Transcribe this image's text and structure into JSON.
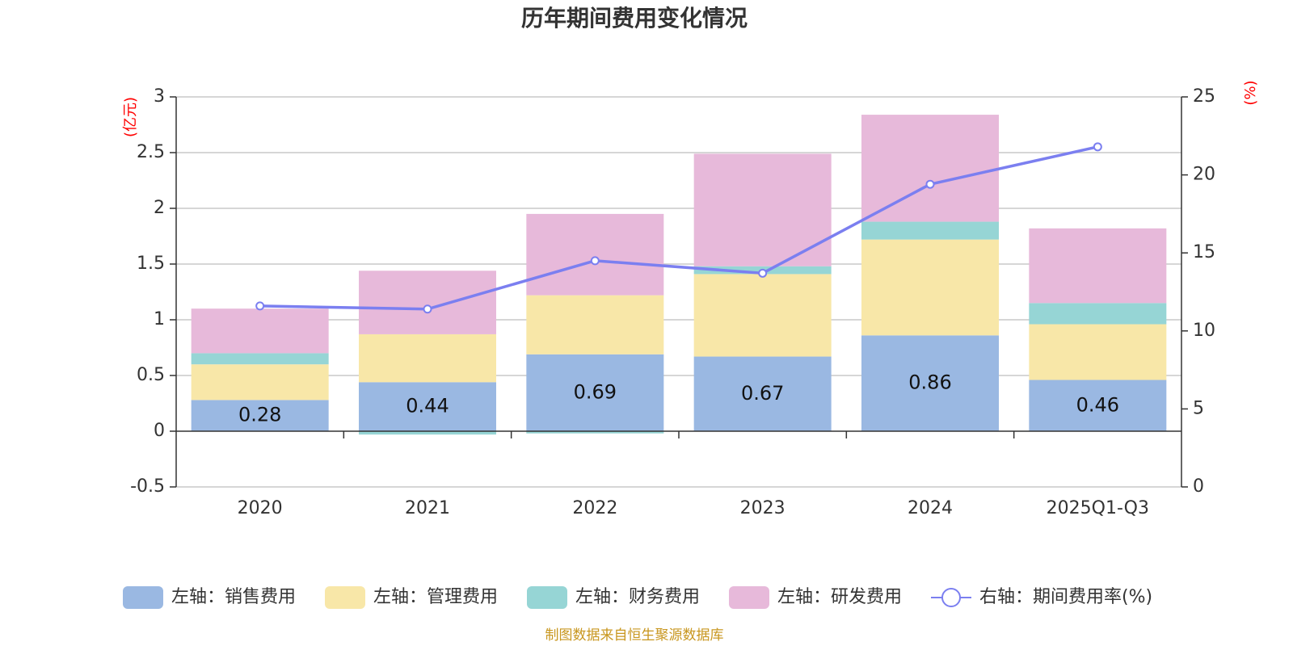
{
  "chart_data": {
    "type": "bar",
    "stacked": true,
    "title": "历年期间费用变化情况",
    "categories": [
      "2020",
      "2021",
      "2022",
      "2023",
      "2024",
      "2025Q1-Q3"
    ],
    "left_axis": {
      "unit_label": "(亿元)",
      "range": [
        -0.5,
        3
      ],
      "ticks": [
        -0.5,
        0,
        0.5,
        1,
        1.5,
        2,
        2.5,
        3
      ],
      "tick_labels": [
        "-0.5",
        "0",
        "0.5",
        "1",
        "1.5",
        "2",
        "2.5",
        "3"
      ]
    },
    "right_axis": {
      "unit_label": "(%)",
      "range": [
        0,
        25
      ],
      "ticks": [
        0,
        5,
        10,
        15,
        20,
        25
      ],
      "tick_labels": [
        "0",
        "5",
        "10",
        "15",
        "20",
        "25"
      ]
    },
    "series": [
      {
        "name": "左轴：销售费用",
        "axis": "left",
        "color": "#9ab8e2",
        "values": [
          0.28,
          0.44,
          0.69,
          0.67,
          0.86,
          0.46
        ],
        "labels": [
          "0.28",
          "0.44",
          "0.69",
          "0.67",
          "0.86",
          "0.46"
        ]
      },
      {
        "name": "左轴：管理费用",
        "axis": "left",
        "color": "#f8e7a8",
        "values": [
          0.32,
          0.43,
          0.53,
          0.74,
          0.86,
          0.5
        ]
      },
      {
        "name": "左轴：财务费用",
        "axis": "left",
        "color": "#96d5d5",
        "values": [
          0.1,
          -0.03,
          -0.02,
          0.07,
          0.16,
          0.19
        ]
      },
      {
        "name": "左轴：研发费用",
        "axis": "left",
        "color": "#e7b9da",
        "values": [
          0.4,
          0.57,
          0.73,
          1.01,
          0.96,
          0.67
        ]
      },
      {
        "name": "右轴：期间费用率(%)",
        "axis": "right",
        "type": "line",
        "color": "#7b7ff0",
        "values": [
          11.6,
          11.4,
          14.5,
          13.7,
          19.4,
          21.8
        ]
      }
    ],
    "source_note": "制图数据来自恒生聚源数据库"
  }
}
